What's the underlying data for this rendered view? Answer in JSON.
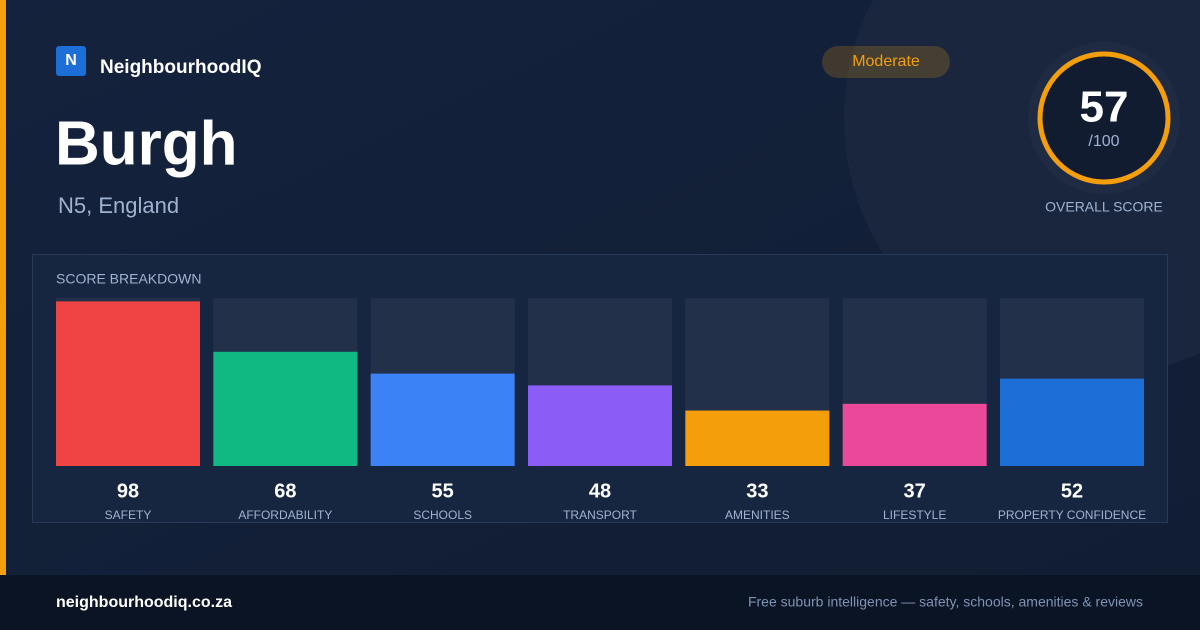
{
  "brand": "NeighbourhoodIQ",
  "logo_letter": "N",
  "title": "Burgh",
  "subtitle": "N5, England",
  "badge": "Moderate",
  "score": {
    "value": 57,
    "out_of": "/100",
    "label": "OVERALL SCORE"
  },
  "chart_data": {
    "type": "bar",
    "title": "SCORE BREAKDOWN",
    "categories": [
      "SAFETY",
      "AFFORDABILITY",
      "SCHOOLS",
      "TRANSPORT",
      "AMENITIES",
      "LIFESTYLE",
      "PROPERTY CONFIDENCE"
    ],
    "values": [
      98,
      68,
      55,
      48,
      33,
      37,
      52
    ],
    "colors": [
      "#ef4444",
      "#10b981",
      "#3b82f6",
      "#8b5cf6",
      "#f59e0b",
      "#ec4899",
      "#1d6fd8"
    ],
    "ylim": [
      0,
      100
    ]
  },
  "footer": {
    "site": "neighbourhoodiq.co.za",
    "tagline": "Free suburb intelligence — safety, schools, amenities & reviews"
  }
}
